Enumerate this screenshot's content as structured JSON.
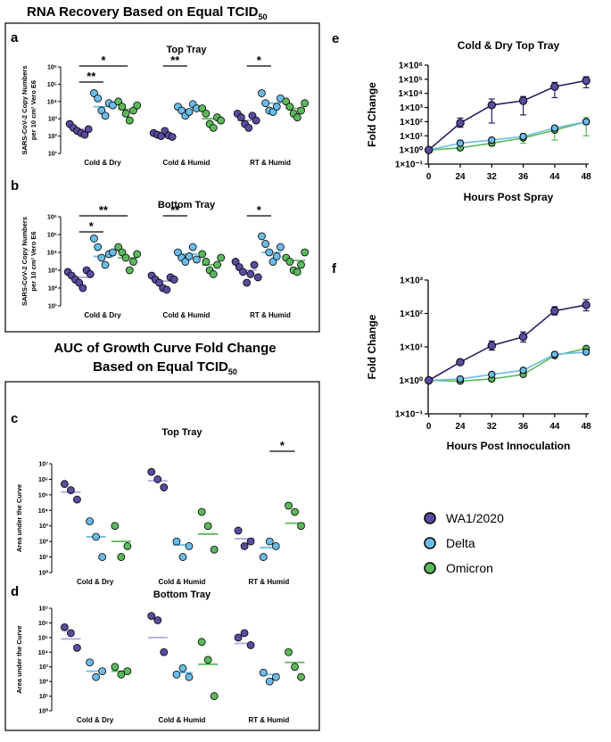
{
  "figure": {
    "title_rna_prefix": "RNA Recovery Based on Equal TCID",
    "title_rna_sub": "50",
    "title_auc_line1": "AUC of Growth Curve Fold Change",
    "title_auc_line2_prefix": "Based on Equal TCID",
    "title_auc_line2_sub": "50"
  },
  "legend": {
    "items": [
      {
        "label": "WA1/2020",
        "color": "#5b4a9e"
      },
      {
        "label": "Delta",
        "color": "#6bbbe8"
      },
      {
        "label": "Omicron",
        "color": "#5cb85c"
      }
    ]
  },
  "colors": {
    "wa1_fill": "#5b4a9e",
    "wa1_line": "#b5aadc",
    "delta_fill": "#6bbbe8",
    "delta_line": "#6bbbe8",
    "omicron_fill": "#5cb85c",
    "omicron_line": "#5cb85c"
  },
  "chart_data": [
    {
      "id": "a",
      "type": "scatter",
      "letter": "a",
      "title": "Top Tray",
      "ylabel_line1": "SARS-CoV-2 Copy Numbers",
      "ylabel_line2": "per 10 cm² Vero E6",
      "yscale": "log10",
      "ylim_exp": [
        1,
        6
      ],
      "tick_labels": [
        "10¹",
        "10²",
        "10³",
        "10⁴",
        "10⁵",
        "10⁶"
      ],
      "categories": [
        "Cold & Dry",
        "Cold & Humid",
        "RT & Humid"
      ],
      "series": [
        {
          "name": "WA1/2020",
          "values": [
            [
              500,
              300,
              200,
              150,
              120,
              250
            ],
            [
              150,
              120,
              100,
              200,
              110,
              90
            ],
            [
              2000,
              1200,
              500,
              300,
              1500,
              800
            ]
          ],
          "means": [
            250,
            130,
            800
          ]
        },
        {
          "name": "Delta",
          "values": [
            [
              30000,
              15000,
              3000,
              1500,
              8000,
              6000
            ],
            [
              5000,
              3000,
              1500,
              2500,
              7000,
              4000
            ],
            [
              30000,
              8000,
              3000,
              2500,
              5000,
              15000
            ]
          ],
          "means": [
            5000,
            3500,
            8000
          ]
        },
        {
          "name": "Omicron",
          "values": [
            [
              10000,
              5000,
              2000,
              800,
              3000,
              6000
            ],
            [
              4000,
              2000,
              500,
              300,
              1200,
              800
            ],
            [
              10000,
              5000,
              2000,
              1200,
              3000,
              8000
            ]
          ],
          "means": [
            3500,
            1000,
            4000
          ]
        }
      ],
      "significance": [
        {
          "label": "*",
          "from": [
            0,
            0
          ],
          "to": [
            0,
            2
          ],
          "level": 1
        },
        {
          "label": "**",
          "from": [
            0,
            0
          ],
          "to": [
            0,
            1
          ],
          "level": 0
        },
        {
          "label": "**",
          "from": [
            1,
            0
          ],
          "to": [
            1,
            1
          ],
          "level": 1
        },
        {
          "label": "*",
          "from": [
            2,
            0
          ],
          "to": [
            2,
            1
          ],
          "level": 1
        }
      ]
    },
    {
      "id": "b",
      "type": "scatter",
      "letter": "b",
      "title": "Bottom Tray",
      "ylabel_line1": "SARS-CoV-2 Copy Numbers",
      "ylabel_line2": "per 10 cm² Vero E6",
      "yscale": "log10",
      "ylim_exp": [
        1,
        6
      ],
      "tick_labels": [
        "10¹",
        "10²",
        "10³",
        "10⁴",
        "10⁵",
        "10⁶"
      ],
      "categories": [
        "Cold & Dry",
        "Cold & Humid",
        "RT & Humid"
      ],
      "series": [
        {
          "name": "WA1/2020",
          "values": [
            [
              800,
              500,
              300,
              200,
              100,
              1000,
              600
            ],
            [
              500,
              300,
              200,
              100,
              80,
              400,
              300
            ],
            [
              3000,
              1500,
              800,
              200,
              600,
              2000,
              400
            ]
          ],
          "means": [
            400,
            250,
            1000
          ]
        },
        {
          "name": "Delta",
          "values": [
            [
              60000,
              20000,
              5000,
              2000,
              8000,
              10000
            ],
            [
              10000,
              5000,
              3000,
              6000,
              20000,
              4000
            ],
            [
              80000,
              30000,
              10000,
              3000,
              6000,
              20000
            ]
          ],
          "means": [
            6000,
            8000,
            10000
          ]
        },
        {
          "name": "Omicron",
          "values": [
            [
              20000,
              10000,
              5000,
              1000,
              3000,
              8000
            ],
            [
              8000,
              3000,
              1000,
              600,
              2000,
              5000
            ],
            [
              5000,
              3000,
              1000,
              800,
              2000,
              10000
            ]
          ],
          "means": [
            5000,
            2000,
            3500
          ]
        }
      ],
      "significance": [
        {
          "label": "**",
          "from": [
            0,
            0
          ],
          "to": [
            0,
            2
          ],
          "level": 1
        },
        {
          "label": "*",
          "from": [
            0,
            0
          ],
          "to": [
            0,
            1
          ],
          "level": 0
        },
        {
          "label": "**",
          "from": [
            1,
            0
          ],
          "to": [
            1,
            1
          ],
          "level": 1
        },
        {
          "label": "*",
          "from": [
            2,
            0
          ],
          "to": [
            2,
            1
          ],
          "level": 1
        }
      ]
    },
    {
      "id": "c",
      "type": "scatter",
      "letter": "c",
      "title": "Top Tray",
      "ylabel_line1": "Area under the Curve",
      "ylabel_line2": "",
      "yscale": "log10",
      "ylim_exp": [
        0,
        7
      ],
      "tick_labels": [
        "10⁰",
        "10¹",
        "10²",
        "10³",
        "10⁴",
        "10⁵",
        "10⁶",
        "10⁷"
      ],
      "categories": [
        "Cold & Dry",
        "Cold & Humid",
        "RT & Humid"
      ],
      "series": [
        {
          "name": "WA1/2020",
          "values": [
            [
              500000,
              200000,
              50000
            ],
            [
              3000000,
              1000000,
              300000
            ],
            [
              500,
              50,
              100
            ]
          ],
          "means": [
            150000,
            800000,
            150
          ]
        },
        {
          "name": "Delta",
          "values": [
            [
              2000,
              200,
              10
            ],
            [
              100,
              10,
              50
            ],
            [
              10,
              100,
              50
            ]
          ],
          "means": [
            200,
            60,
            40
          ]
        },
        {
          "name": "Omicron",
          "values": [
            [
              1000,
              10,
              50
            ],
            [
              8000,
              1000,
              30
            ],
            [
              20000,
              8000,
              1000
            ]
          ],
          "means": [
            100,
            300,
            1500
          ]
        }
      ],
      "significance": [
        {
          "label": "*",
          "from": [
            2,
            1
          ],
          "to": [
            2,
            2
          ],
          "level": 0
        }
      ]
    },
    {
      "id": "d",
      "type": "scatter",
      "letter": "d",
      "title": "Bottom Tray",
      "ylabel_line1": "Area under the Curve",
      "ylabel_line2": "",
      "yscale": "log10",
      "ylim_exp": [
        0,
        7
      ],
      "tick_labels": [
        "10⁰",
        "10¹",
        "10²",
        "10³",
        "10⁴",
        "10⁵",
        "10⁶",
        "10⁷"
      ],
      "categories": [
        "Cold & Dry",
        "Cold & Humid",
        "RT & Humid"
      ],
      "series": [
        {
          "name": "WA1/2020",
          "values": [
            [
              500000,
              200000,
              20000
            ],
            [
              3000000,
              1500000,
              10000
            ],
            [
              100000,
              200000,
              30000
            ]
          ],
          "means": [
            80000,
            100000,
            40000
          ]
        },
        {
          "name": "Delta",
          "values": [
            [
              2000,
              200,
              500
            ],
            [
              300,
              800,
              200
            ],
            [
              400,
              100,
              200
            ]
          ],
          "means": [
            500,
            400,
            300
          ]
        },
        {
          "name": "Omicron",
          "values": [
            [
              1000,
              300,
              500
            ],
            [
              50000,
              3000,
              10
            ],
            [
              10000,
              1000,
              200
            ]
          ],
          "means": [
            500,
            1500,
            2000
          ]
        }
      ],
      "significance": []
    },
    {
      "id": "e",
      "type": "line",
      "letter": "e",
      "title": "Cold & Dry Top Tray",
      "xlabel": "Hours Post Spray",
      "ylabel": "Fold Change",
      "x": [
        0,
        24,
        32,
        36,
        44,
        48
      ],
      "yscale": "log10",
      "ylim_exp": [
        -1,
        6
      ],
      "tick_labels": [
        "1×10⁻¹",
        "1×10⁰",
        "1×10¹",
        "1×10²",
        "1×10³",
        "1×10⁴",
        "1×10⁵",
        "1×10⁶"
      ],
      "series": [
        {
          "name": "WA1/2020",
          "values": [
            1,
            80,
            1500,
            3000,
            30000,
            80000
          ],
          "err_lo": [
            1,
            40,
            80,
            300,
            5000,
            25000
          ],
          "err_hi": [
            1,
            180,
            4000,
            6000,
            60000,
            150000
          ]
        },
        {
          "name": "Delta",
          "values": [
            1,
            3,
            5,
            9,
            35,
            100
          ],
          "err_lo": [
            1,
            1.8,
            3.5,
            6,
            25,
            60
          ],
          "err_hi": [
            1,
            5,
            7,
            12,
            50,
            140
          ]
        },
        {
          "name": "Omicron",
          "values": [
            1,
            1.4,
            3,
            7,
            25,
            100
          ],
          "err_lo": [
            1,
            1.1,
            2,
            3,
            5,
            10
          ],
          "err_hi": [
            1,
            1.8,
            4,
            14,
            40,
            200
          ]
        }
      ]
    },
    {
      "id": "f",
      "type": "line",
      "letter": "f",
      "title": "",
      "xlabel": "Hours Post Innoculation",
      "ylabel": "Fold Change",
      "x": [
        0,
        24,
        32,
        36,
        44,
        48
      ],
      "yscale": "log10",
      "ylim_exp": [
        -1,
        3
      ],
      "tick_labels": [
        "1×10⁻¹",
        "1×10⁰",
        "1×10¹",
        "1×10²",
        "1×10³"
      ],
      "series": [
        {
          "name": "WA1/2020",
          "values": [
            1,
            3.5,
            11,
            20,
            120,
            180
          ],
          "err_lo": [
            1,
            3.2,
            8,
            14,
            90,
            120
          ],
          "err_hi": [
            1,
            3.8,
            15,
            28,
            160,
            260
          ]
        },
        {
          "name": "Delta",
          "values": [
            1,
            1.1,
            1.5,
            2,
            6,
            7
          ],
          "err_lo": [
            1,
            1.05,
            1.4,
            1.8,
            5,
            6
          ],
          "err_hi": [
            1,
            1.15,
            1.6,
            2.2,
            7,
            8
          ]
        },
        {
          "name": "Omicron",
          "values": [
            1,
            0.95,
            1.1,
            1.5,
            5.5,
            9
          ],
          "err_lo": [
            1,
            0.9,
            1,
            1.4,
            5,
            8
          ],
          "err_hi": [
            1,
            1,
            1.2,
            1.6,
            6,
            10
          ]
        }
      ]
    }
  ]
}
